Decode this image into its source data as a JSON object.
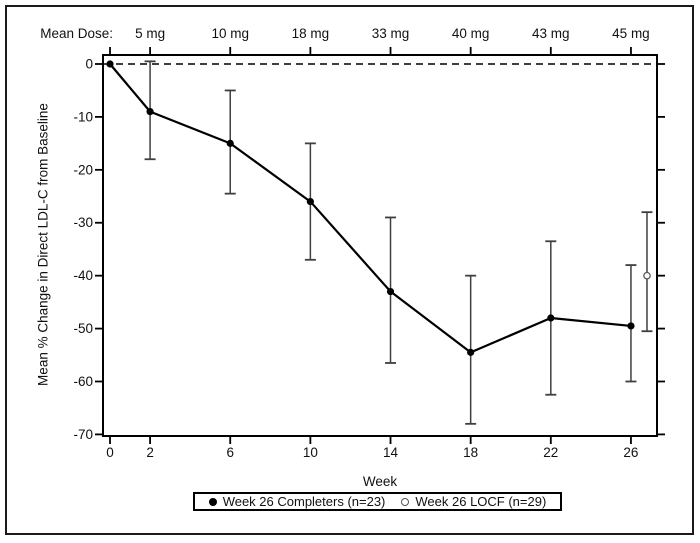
{
  "top_axis": {
    "label": "Mean Dose:",
    "doses": [
      {
        "week": 2,
        "dose": "5 mg"
      },
      {
        "week": 6,
        "dose": "10 mg"
      },
      {
        "week": 10,
        "dose": "18 mg"
      },
      {
        "week": 14,
        "dose": "33 mg"
      },
      {
        "week": 18,
        "dose": "40 mg"
      },
      {
        "week": 22,
        "dose": "43 mg"
      },
      {
        "week": 26,
        "dose": "45 mg"
      }
    ]
  },
  "chart_data": {
    "type": "line",
    "title": "",
    "xlabel": "Week",
    "ylabel": "Mean % Change in Direct LDL-C from Baseline",
    "x_ticks": [
      0,
      2,
      6,
      10,
      14,
      18,
      22,
      26
    ],
    "y_ticks": [
      0,
      -10,
      -20,
      -30,
      -40,
      -50,
      -60,
      -70
    ],
    "xlim": [
      -0.35,
      27.3
    ],
    "ylim": [
      -70.3,
      1.7
    ],
    "grid": false,
    "reference_line_y": 0,
    "series": [
      {
        "name": "Week 26 Completers (n=23)",
        "marker": "filled-circle",
        "line": true,
        "points": [
          {
            "x": 0,
            "y": 0
          },
          {
            "x": 2,
            "y": -9,
            "ci_low": -18,
            "ci_high": 0.5
          },
          {
            "x": 6,
            "y": -15,
            "ci_low": -24.5,
            "ci_high": -5
          },
          {
            "x": 10,
            "y": -26,
            "ci_low": -37,
            "ci_high": -15
          },
          {
            "x": 14,
            "y": -43,
            "ci_low": -56.5,
            "ci_high": -29
          },
          {
            "x": 18,
            "y": -54.5,
            "ci_low": -68,
            "ci_high": -40
          },
          {
            "x": 22,
            "y": -48,
            "ci_low": -62.5,
            "ci_high": -33.5
          },
          {
            "x": 26,
            "y": -49.5,
            "ci_low": -60,
            "ci_high": -38
          }
        ]
      },
      {
        "name": "Week 26 LOCF (n=29)",
        "marker": "open-circle",
        "line": false,
        "points": [
          {
            "x": 26.8,
            "y": -40,
            "ci_low": -50.5,
            "ci_high": -28
          }
        ]
      }
    ],
    "legend": {
      "position": "bottom-center",
      "entries": [
        {
          "marker": "filled-circle",
          "label": "Week 26 Completers (n=23)"
        },
        {
          "marker": "open-circle",
          "label": "Week 26 LOCF (n=29)"
        }
      ]
    },
    "colors": {
      "axis": "#000000",
      "line": "#000000",
      "marker": "#000000",
      "error_bar": "#3f3f3f",
      "locf_marker": "#5a5a5a",
      "text": "#111111",
      "background": "#ffffff"
    }
  }
}
